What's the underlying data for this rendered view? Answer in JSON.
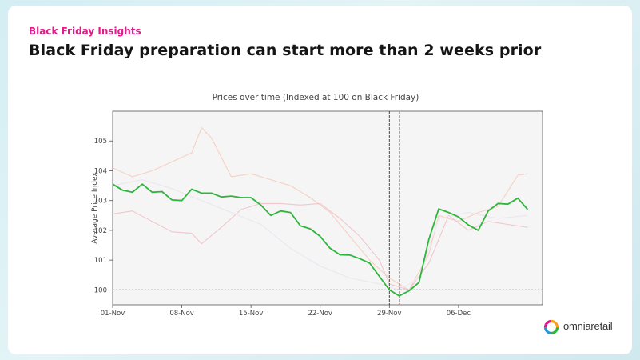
{
  "slide": {
    "eyebrow": "Black Friday Insights",
    "headline": "Black Friday preparation can start more than 2 weeks prior",
    "logo_text": "omniaretail",
    "logo_icon": "ring-logo-icon",
    "accent_color": "#e6198a"
  },
  "chart_data": {
    "type": "line",
    "title": "Prices over time (Indexed at 100 on Black Friday)",
    "xlabel": "",
    "ylabel": "Average Price Index",
    "ylim": [
      99.5,
      106
    ],
    "yticks": [
      100,
      101,
      102,
      103,
      104,
      105
    ],
    "xticks": [
      {
        "label": "01-Nov",
        "day": 0
      },
      {
        "label": "08-Nov",
        "day": 7
      },
      {
        "label": "15-Nov",
        "day": 14
      },
      {
        "label": "22-Nov",
        "day": 21
      },
      {
        "label": "29-Nov",
        "day": 28
      },
      {
        "label": "06-Dec",
        "day": 35
      }
    ],
    "xlim": [
      0,
      43.5
    ],
    "reference_line_y": 100,
    "vertical_markers": [
      28,
      29
    ],
    "grid": false,
    "series": [
      {
        "color": "#2fb53c",
        "highlight": true,
        "values": [
          [
            0,
            103.55
          ],
          [
            1,
            103.35
          ],
          [
            2,
            103.28
          ],
          [
            3,
            103.55
          ],
          [
            4,
            103.28
          ],
          [
            5,
            103.3
          ],
          [
            6,
            103.02
          ],
          [
            7,
            103.0
          ],
          [
            8,
            103.38
          ],
          [
            9,
            103.25
          ],
          [
            10,
            103.25
          ],
          [
            11,
            103.12
          ],
          [
            12,
            103.15
          ],
          [
            13,
            103.1
          ],
          [
            14,
            103.1
          ],
          [
            15,
            102.85
          ],
          [
            16,
            102.5
          ],
          [
            17,
            102.65
          ],
          [
            18,
            102.6
          ],
          [
            19,
            102.15
          ],
          [
            20,
            102.05
          ],
          [
            21,
            101.8
          ],
          [
            22,
            101.4
          ],
          [
            23,
            101.18
          ],
          [
            24,
            101.17
          ],
          [
            25,
            101.05
          ],
          [
            26,
            100.9
          ],
          [
            27,
            100.45
          ],
          [
            28,
            100.0
          ],
          [
            29,
            99.8
          ],
          [
            30,
            99.97
          ],
          [
            31,
            100.25
          ],
          [
            32,
            101.7
          ],
          [
            33,
            102.72
          ],
          [
            34,
            102.6
          ],
          [
            35,
            102.45
          ],
          [
            36,
            102.18
          ],
          [
            37,
            102.0
          ],
          [
            38,
            102.65
          ],
          [
            39,
            102.9
          ],
          [
            40,
            102.88
          ],
          [
            41,
            103.08
          ],
          [
            42,
            102.7
          ]
        ]
      },
      {
        "color": "#f6d0c3",
        "highlight": false,
        "values": [
          [
            0,
            104.1
          ],
          [
            2,
            103.8
          ],
          [
            4,
            104.0
          ],
          [
            6,
            104.3
          ],
          [
            8,
            104.6
          ],
          [
            9,
            105.45
          ],
          [
            10,
            105.1
          ],
          [
            12,
            103.8
          ],
          [
            14,
            103.9
          ],
          [
            16,
            103.7
          ],
          [
            18,
            103.5
          ],
          [
            20,
            103.1
          ],
          [
            22,
            102.6
          ],
          [
            24,
            101.8
          ],
          [
            26,
            101.0
          ],
          [
            28,
            100.4
          ],
          [
            30,
            100.0
          ],
          [
            32,
            101.2
          ],
          [
            33,
            102.5
          ],
          [
            35,
            102.3
          ],
          [
            37,
            102.6
          ],
          [
            39,
            102.8
          ],
          [
            41,
            103.85
          ],
          [
            42,
            103.9
          ]
        ]
      },
      {
        "color": "#f1c6cc",
        "highlight": false,
        "values": [
          [
            0,
            102.55
          ],
          [
            2,
            102.65
          ],
          [
            4,
            102.3
          ],
          [
            6,
            101.95
          ],
          [
            8,
            101.9
          ],
          [
            9,
            101.55
          ],
          [
            11,
            102.1
          ],
          [
            13,
            102.7
          ],
          [
            15,
            102.9
          ],
          [
            17,
            102.9
          ],
          [
            19,
            102.85
          ],
          [
            21,
            102.9
          ],
          [
            23,
            102.4
          ],
          [
            25,
            101.8
          ],
          [
            27,
            101.0
          ],
          [
            28,
            100.2
          ],
          [
            30,
            100.0
          ],
          [
            32,
            100.9
          ],
          [
            34,
            102.5
          ],
          [
            36,
            102.0
          ],
          [
            38,
            102.3
          ],
          [
            40,
            102.2
          ],
          [
            42,
            102.1
          ]
        ]
      },
      {
        "color": "#ece6f0",
        "highlight": false,
        "values": [
          [
            0,
            103.5
          ],
          [
            3,
            103.7
          ],
          [
            6,
            103.4
          ],
          [
            9,
            103.0
          ],
          [
            12,
            102.6
          ],
          [
            15,
            102.2
          ],
          [
            18,
            101.4
          ],
          [
            21,
            100.8
          ],
          [
            24,
            100.4
          ],
          [
            27,
            100.2
          ],
          [
            29,
            100.0
          ],
          [
            31,
            100.4
          ],
          [
            33,
            102.4
          ],
          [
            36,
            102.6
          ],
          [
            39,
            102.4
          ],
          [
            42,
            102.5
          ]
        ]
      }
    ]
  }
}
